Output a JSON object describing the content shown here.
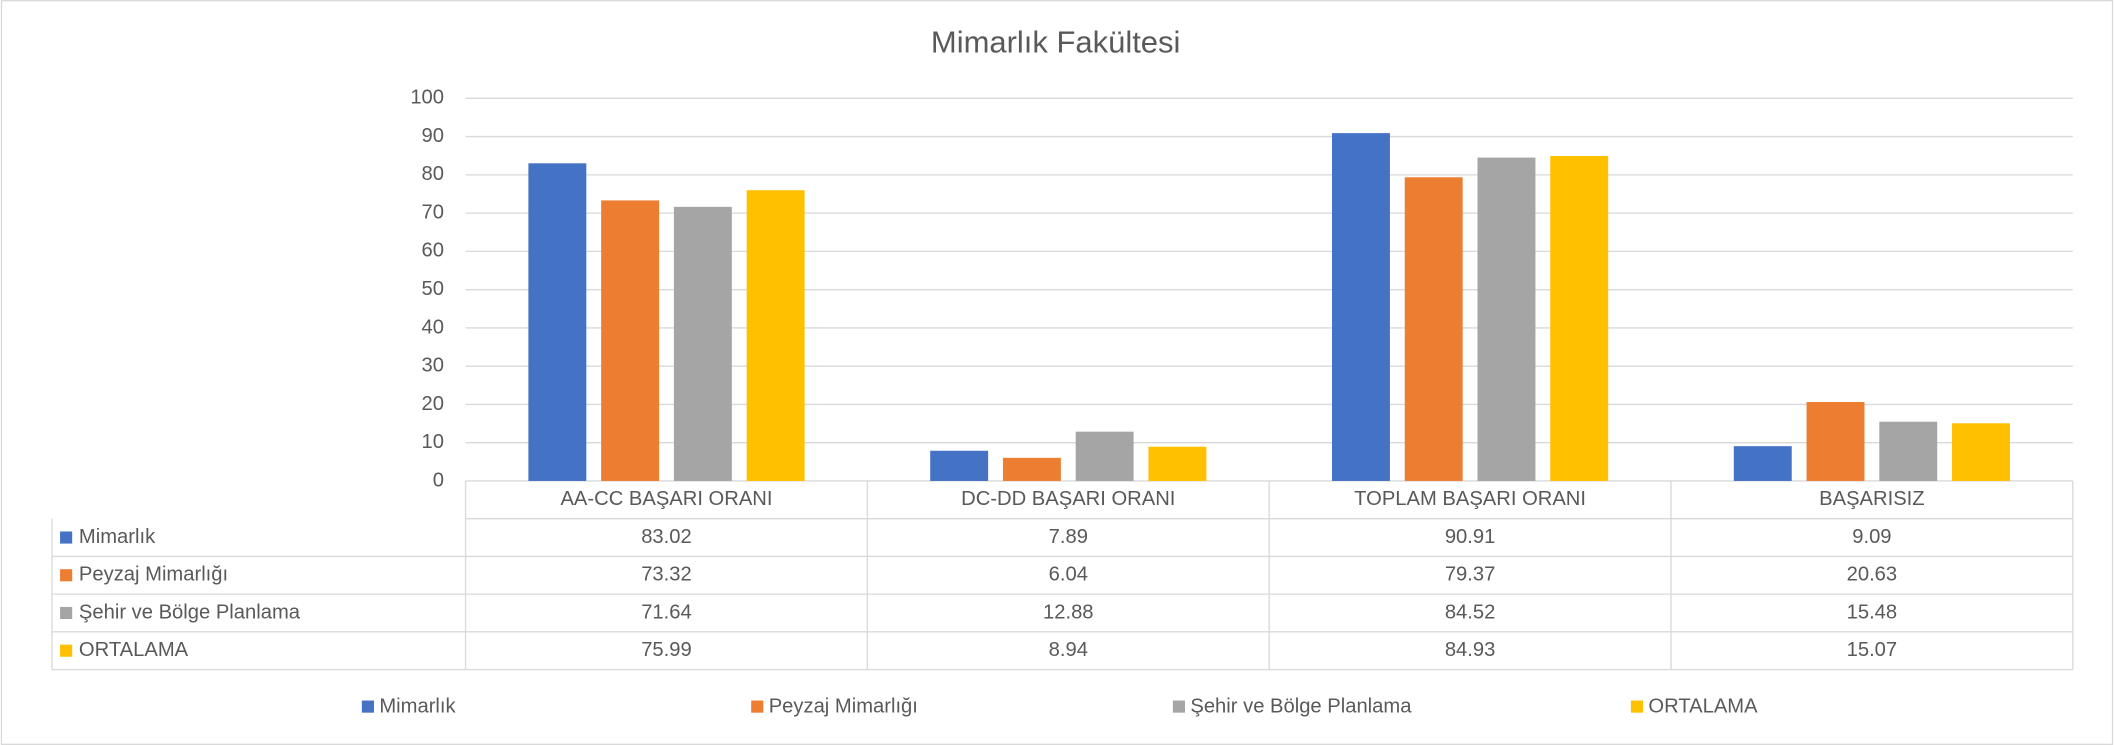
{
  "chart_data": {
    "type": "bar",
    "title": "Mimarlık Fakültesi",
    "categories": [
      "AA-CC BAŞARI ORANI",
      "DC-DD BAŞARI ORANI",
      "TOPLAM BAŞARI ORANI",
      "BAŞARISIZ"
    ],
    "series": [
      {
        "name": "Mimarlık",
        "color": "#4472c4",
        "values": [
          83.02,
          7.89,
          90.91,
          9.09
        ]
      },
      {
        "name": "Peyzaj Mimarlığı",
        "color": "#ed7d31",
        "values": [
          73.32,
          6.04,
          79.37,
          20.63
        ]
      },
      {
        "name": "Şehir ve Bölge Planlama",
        "color": "#a5a5a5",
        "values": [
          71.64,
          12.88,
          84.52,
          15.48
        ]
      },
      {
        "name": "ORTALAMA",
        "color": "#ffc000",
        "values": [
          75.99,
          8.94,
          84.93,
          15.07
        ]
      }
    ],
    "ylim": [
      0,
      100
    ],
    "yticks": [
      0,
      10,
      20,
      30,
      40,
      50,
      60,
      70,
      80,
      90,
      100
    ],
    "grid": true,
    "legend": "bottom"
  }
}
